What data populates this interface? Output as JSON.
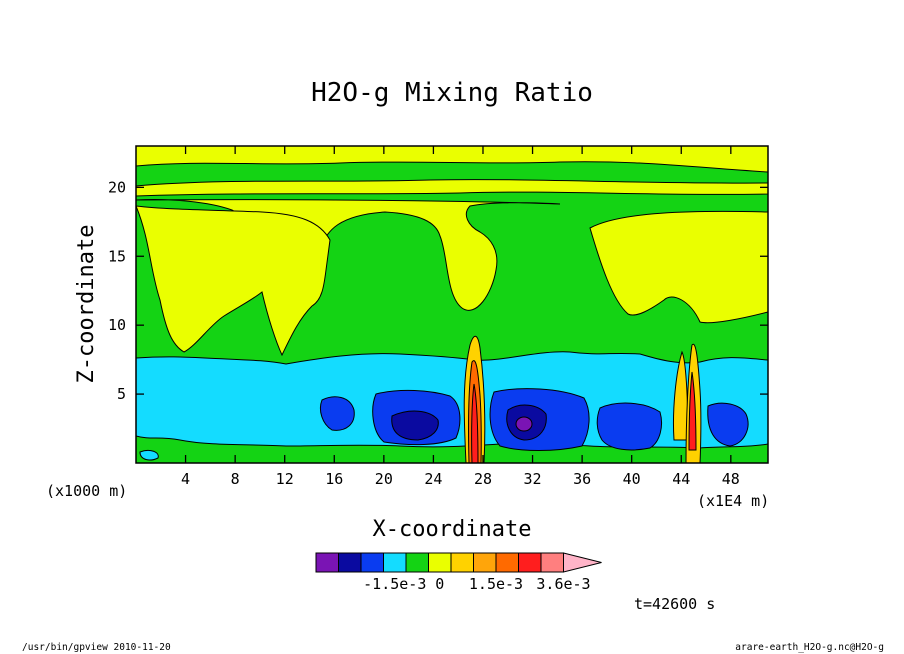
{
  "chart_data": {
    "type": "heatmap",
    "title": "H2O-g Mixing Ratio",
    "xlabel": "X-coordinate",
    "ylabel": "Z-coordinate",
    "x_unit_left": "(x1000 m)",
    "x_unit_right": "(x1E4 m)",
    "x_ticks": [
      4,
      8,
      12,
      16,
      20,
      24,
      28,
      32,
      36,
      40,
      44,
      48
    ],
    "y_ticks": [
      5,
      10,
      15,
      20
    ],
    "xlim": [
      0,
      51
    ],
    "ylim": [
      0,
      23
    ],
    "grid": false,
    "colorbar": {
      "colors": [
        "#7a14b4",
        "#0a0aa0",
        "#0a3cf0",
        "#14dcff",
        "#14d314",
        "#eaff00",
        "#ffd200",
        "#ffa50a",
        "#ff6a00",
        "#ff1e1e",
        "#ff7f7f",
        "#ffb4c8"
      ],
      "labels": [
        "-1.5e-3",
        "0",
        "1.5e-3",
        "3.6e-3"
      ]
    },
    "time_label": "t=42600 s",
    "footer_left": "/usr/bin/gpview  2010-11-20",
    "footer_right": "arare-earth_H2O-g.nc@H2O-g"
  }
}
